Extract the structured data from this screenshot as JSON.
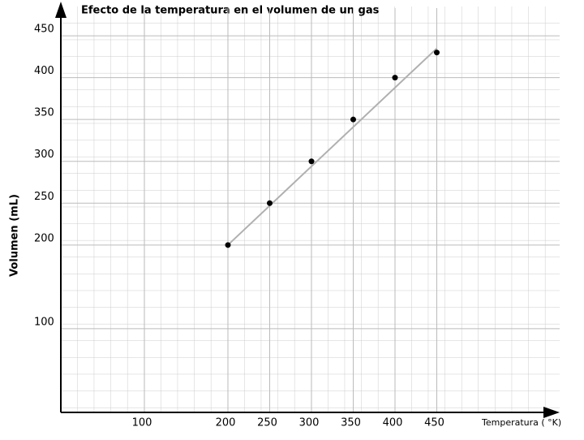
{
  "chart_data": {
    "type": "scatter",
    "title": "Efecto de la temperatura en el volumen de un gas",
    "x_label": "Temperatura ( °K)",
    "y_label": "Volumen (mL)",
    "x": [
      200,
      250,
      300,
      350,
      400,
      450
    ],
    "values": [
      200,
      250,
      300,
      350,
      400,
      430
    ],
    "color": "#000000",
    "trendline": {
      "x": [
        200,
        450
      ],
      "values": [
        200,
        435
      ],
      "color": "#b0b0b0"
    },
    "xlim": [
      0,
      600
    ],
    "ylim": [
      0,
      485
    ],
    "xticks": [
      100,
      200,
      250,
      300,
      350,
      400,
      450
    ],
    "yticks": [
      100,
      200,
      250,
      300,
      350,
      400,
      450
    ],
    "grid": true
  }
}
